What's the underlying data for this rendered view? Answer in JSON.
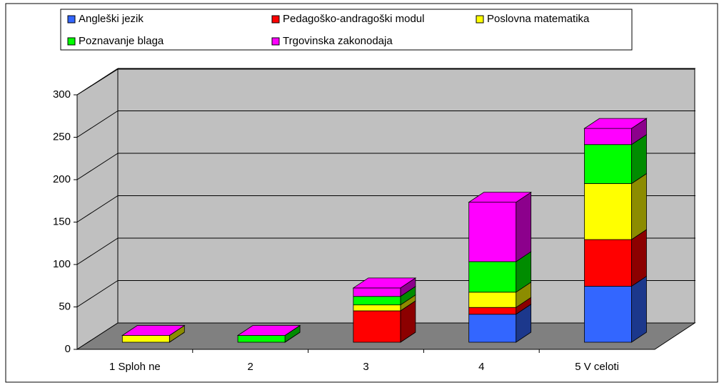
{
  "chart_data": {
    "type": "bar3d_stacked",
    "categories": [
      "1 Sploh ne",
      "2",
      "3",
      "4",
      "5 V celoti"
    ],
    "series": [
      {
        "name": "Angleški jezik",
        "color": "#3366ff",
        "values": [
          0,
          0,
          0,
          33,
          66
        ]
      },
      {
        "name": "Pedagoško-andragoški modul",
        "color": "#ff0000",
        "values": [
          0,
          0,
          37,
          8,
          55
        ]
      },
      {
        "name": "Poslovna matematika",
        "color": "#ffff00",
        "values": [
          8,
          0,
          7,
          18,
          66
        ]
      },
      {
        "name": "Poznavanje blaga",
        "color": "#00ff00",
        "values": [
          0,
          8,
          10,
          36,
          46
        ]
      },
      {
        "name": "Trgovinska zakonodaja",
        "color": "#ff00ff",
        "values": [
          0,
          0,
          10,
          70,
          19
        ]
      }
    ],
    "ylim": [
      0,
      300
    ],
    "yticks": [
      0,
      50,
      100,
      150,
      200,
      250,
      300
    ],
    "grid": true
  }
}
